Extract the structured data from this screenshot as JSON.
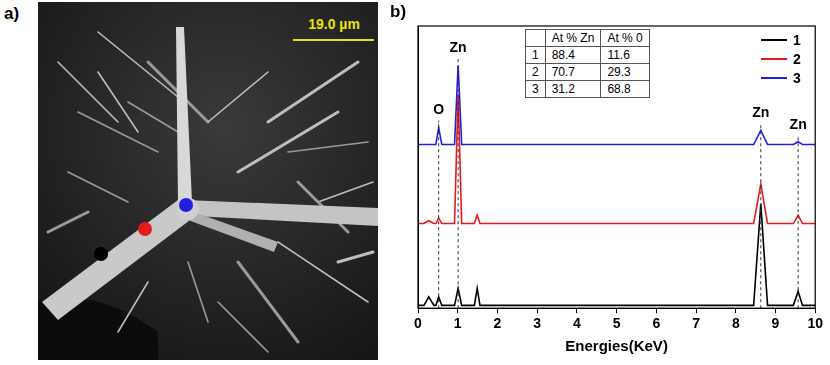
{
  "image_panel": {
    "label": "a)",
    "scale_bar": "19.0 µm"
  },
  "chart_data": {
    "type": "line",
    "panel_label": "b)",
    "x_label": "Energies(KeV)",
    "x": [
      0,
      0.15,
      0.27,
      0.4,
      0.45,
      0.52,
      0.6,
      0.92,
      1.01,
      1.1,
      1.42,
      1.49,
      1.56,
      8.45,
      8.63,
      8.8,
      9.45,
      9.57,
      9.68,
      10
    ],
    "series": [
      {
        "name": "1",
        "color": "#000000",
        "values": [
          1,
          1,
          4,
          1,
          1,
          4,
          1,
          1,
          7,
          1,
          1,
          7,
          1,
          1,
          37,
          1,
          1,
          6,
          1,
          1
        ]
      },
      {
        "name": "2",
        "color": "#e41a1c",
        "values": [
          30,
          30,
          31,
          30,
          30,
          32,
          30,
          30,
          76,
          30,
          30,
          33,
          30,
          30,
          44,
          30,
          30,
          33,
          30,
          30
        ]
      },
      {
        "name": "3",
        "color": "#1f1fe0",
        "values": [
          58,
          58,
          58,
          58,
          58,
          64,
          58,
          58,
          86,
          58,
          58,
          58,
          58,
          58,
          63,
          58,
          58,
          59,
          58,
          58
        ]
      }
    ],
    "xlim": [
      0,
      10
    ],
    "xticks": [
      0,
      1,
      2,
      3,
      4,
      5,
      6,
      7,
      8,
      9,
      10
    ],
    "ylim": [
      0,
      100
    ],
    "tick_labels": "x",
    "grid": false,
    "legend": "upper right",
    "annotations": [
      {
        "x": 0.52,
        "label": "O"
      },
      {
        "x": 1.01,
        "label": "Zn"
      },
      {
        "x": 8.63,
        "label": "Zn"
      },
      {
        "x": 9.57,
        "label": "Zn"
      }
    ],
    "table": {
      "columns": [
        "At % Zn",
        "At % 0"
      ],
      "rows": [
        [
          "1",
          88.4,
          11.6
        ],
        [
          "2",
          70.7,
          29.3
        ],
        [
          "3",
          31.2,
          68.8
        ]
      ]
    }
  }
}
